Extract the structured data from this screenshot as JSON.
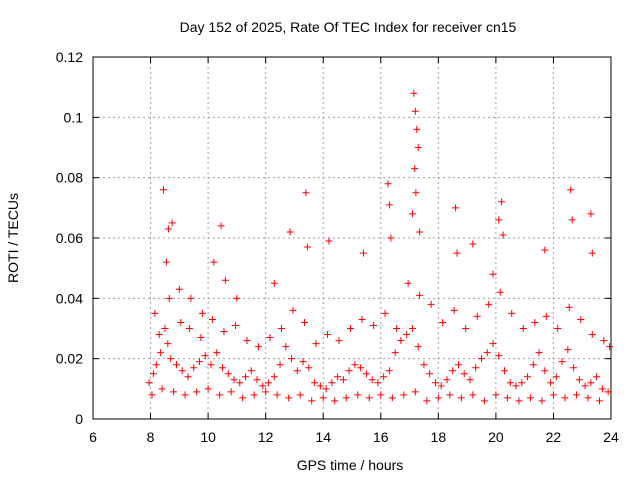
{
  "chart_data": {
    "type": "scatter",
    "title": "Day 152 of 2025, Rate Of TEC Index for receiver cn15",
    "xlabel": "GPS time / hours",
    "ylabel": "ROTI / TECUs",
    "xlim": [
      6,
      24
    ],
    "ylim": [
      0,
      0.12
    ],
    "x_ticks": [
      6,
      8,
      10,
      12,
      14,
      16,
      18,
      20,
      22,
      24
    ],
    "y_ticks": [
      0,
      0.02,
      0.04,
      0.06,
      0.08,
      0.1,
      0.12
    ],
    "x_tick_labels": [
      "6",
      "8",
      "10",
      "12",
      "14",
      "16",
      "18",
      "20",
      "22",
      "24"
    ],
    "y_tick_labels": [
      "0",
      "0.02",
      "0.04",
      "0.06",
      "0.08",
      "0.1",
      "0.12"
    ],
    "grid": true,
    "marker": "+",
    "series": [
      {
        "name": "ROTI",
        "color": "#ff0000",
        "x": [
          7.95,
          8.1,
          8.2,
          8.35,
          8.5,
          8.6,
          8.7,
          8.9,
          9.1,
          9.3,
          9.5,
          9.7,
          9.9,
          10.1,
          10.3,
          10.5,
          10.7,
          10.9,
          11.1,
          11.3,
          11.5,
          11.7,
          11.9,
          12.1,
          12.3,
          12.5,
          12.7,
          12.9,
          13.1,
          13.3,
          13.5,
          13.7,
          13.9,
          14.1,
          14.3,
          14.5,
          14.7,
          14.9,
          15.1,
          15.3,
          15.5,
          15.7,
          15.9,
          16.1,
          16.3,
          16.5,
          16.7,
          16.9,
          17.1,
          17.3,
          17.5,
          17.7,
          17.9,
          18.1,
          18.3,
          18.5,
          18.7,
          18.9,
          19.1,
          19.3,
          19.5,
          19.7,
          19.9,
          20.1,
          20.3,
          20.5,
          20.7,
          20.9,
          21.1,
          21.3,
          21.5,
          21.7,
          21.9,
          22.1,
          22.3,
          22.5,
          22.7,
          22.9,
          23.1,
          23.3,
          23.5,
          23.7,
          23.9,
          8.05,
          8.4,
          8.8,
          9.2,
          9.6,
          10.0,
          10.4,
          10.8,
          11.2,
          11.6,
          12.0,
          12.4,
          12.8,
          13.2,
          13.6,
          14.0,
          14.4,
          14.8,
          15.2,
          15.6,
          16.0,
          16.4,
          16.8,
          17.2,
          17.6,
          18.0,
          18.4,
          18.8,
          19.2,
          19.6,
          20.0,
          20.4,
          20.8,
          21.2,
          21.6,
          22.0,
          22.4,
          22.8,
          23.2,
          23.6,
          8.45,
          8.55,
          8.62,
          8.75,
          9.0,
          9.4,
          9.8,
          10.2,
          10.45,
          10.6,
          12.85,
          13.4,
          13.45,
          14.2,
          16.25,
          16.3,
          16.35,
          17.15,
          17.2,
          17.25,
          17.3,
          17.18,
          17.22,
          17.1,
          17.35,
          18.6,
          18.65,
          19.2,
          20.1,
          20.2,
          20.25,
          21.7,
          22.6,
          22.65,
          23.3,
          23.35,
          19.9,
          15.4,
          11.0,
          12.3,
          8.15,
          8.3,
          8.65,
          9.05,
          9.35,
          9.75,
          10.15,
          10.55,
          10.95,
          11.35,
          11.75,
          12.15,
          12.55,
          12.95,
          13.35,
          13.75,
          14.15,
          14.55,
          14.95,
          15.35,
          15.75,
          16.15,
          16.55,
          16.95,
          17.35,
          17.75,
          18.15,
          18.55,
          18.95,
          19.35,
          19.75,
          20.15,
          20.55,
          20.95,
          21.35,
          21.75,
          22.15,
          22.55,
          22.95,
          23.35,
          23.75,
          23.95
        ],
        "y": [
          0.012,
          0.015,
          0.018,
          0.022,
          0.03,
          0.025,
          0.02,
          0.018,
          0.016,
          0.014,
          0.017,
          0.019,
          0.021,
          0.018,
          0.022,
          0.017,
          0.015,
          0.013,
          0.012,
          0.014,
          0.016,
          0.013,
          0.011,
          0.012,
          0.014,
          0.018,
          0.024,
          0.02,
          0.016,
          0.019,
          0.017,
          0.012,
          0.011,
          0.01,
          0.012,
          0.014,
          0.013,
          0.016,
          0.018,
          0.017,
          0.015,
          0.013,
          0.012,
          0.014,
          0.016,
          0.022,
          0.026,
          0.028,
          0.03,
          0.024,
          0.018,
          0.015,
          0.012,
          0.011,
          0.013,
          0.016,
          0.018,
          0.015,
          0.013,
          0.017,
          0.02,
          0.022,
          0.025,
          0.021,
          0.016,
          0.012,
          0.011,
          0.012,
          0.014,
          0.018,
          0.022,
          0.016,
          0.012,
          0.014,
          0.019,
          0.023,
          0.017,
          0.013,
          0.011,
          0.012,
          0.014,
          0.01,
          0.009,
          0.008,
          0.01,
          0.009,
          0.008,
          0.009,
          0.01,
          0.008,
          0.009,
          0.007,
          0.008,
          0.009,
          0.008,
          0.007,
          0.008,
          0.006,
          0.007,
          0.006,
          0.007,
          0.008,
          0.007,
          0.008,
          0.007,
          0.008,
          0.009,
          0.006,
          0.007,
          0.008,
          0.007,
          0.008,
          0.006,
          0.008,
          0.007,
          0.006,
          0.007,
          0.006,
          0.008,
          0.007,
          0.008,
          0.007,
          0.006,
          0.076,
          0.052,
          0.063,
          0.065,
          0.043,
          0.04,
          0.035,
          0.052,
          0.064,
          0.046,
          0.062,
          0.075,
          0.057,
          0.059,
          0.078,
          0.071,
          0.06,
          0.108,
          0.102,
          0.096,
          0.09,
          0.083,
          0.075,
          0.068,
          0.062,
          0.07,
          0.055,
          0.058,
          0.066,
          0.072,
          0.061,
          0.056,
          0.076,
          0.066,
          0.068,
          0.055,
          0.048,
          0.055,
          0.04,
          0.045,
          0.035,
          0.028,
          0.04,
          0.032,
          0.03,
          0.027,
          0.033,
          0.029,
          0.031,
          0.026,
          0.024,
          0.027,
          0.03,
          0.036,
          0.032,
          0.025,
          0.028,
          0.026,
          0.03,
          0.033,
          0.031,
          0.035,
          0.03,
          0.045,
          0.041,
          0.038,
          0.032,
          0.036,
          0.03,
          0.034,
          0.038,
          0.042,
          0.035,
          0.03,
          0.032,
          0.034,
          0.03,
          0.037,
          0.033,
          0.028,
          0.026,
          0.024
        ]
      }
    ]
  }
}
